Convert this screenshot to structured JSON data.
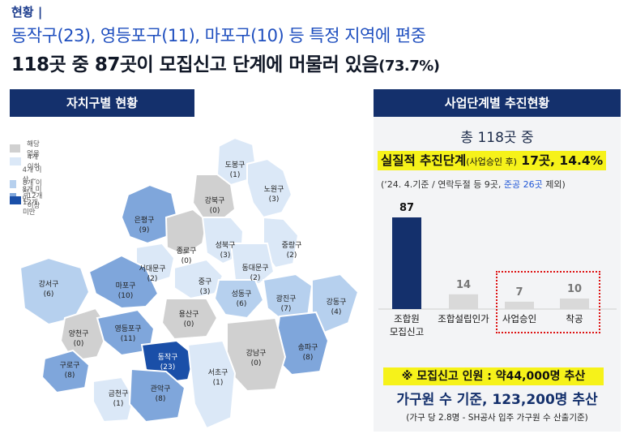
{
  "header": {
    "section": "현황",
    "line1": "동작구(23), 영등포구(11), 마포구(10) 등 특정 지역에 편중",
    "line2_main": "118곳 중 87곳이 모집신고 단계에 머물러 있음",
    "line2_pct": "(73.7%)"
  },
  "left_panel": {
    "title": "자치구별 현황",
    "legend": [
      {
        "label": "해당 없음",
        "color": "#d0d0d0"
      },
      {
        "label": "4개 이하",
        "color": "#dbe8f7"
      },
      {
        "label": "4개 이상 ~ 8개 미만",
        "color": "#b6d0ee"
      },
      {
        "label": "8개 이상 ~ 12개 미만",
        "color": "#7fa6db"
      },
      {
        "label": "12개 이상",
        "color": "#1a4fa8"
      }
    ],
    "districts": [
      {
        "name": "도봉구",
        "count": "(1)",
        "color": "#dbe8f7"
      },
      {
        "name": "노원구",
        "count": "(3)",
        "color": "#dbe8f7"
      },
      {
        "name": "강북구",
        "count": "(0)",
        "color": "#d0d0d0"
      },
      {
        "name": "은평구",
        "count": "(9)",
        "color": "#7fa6db"
      },
      {
        "name": "종로구",
        "count": "(0)",
        "color": "#d0d0d0"
      },
      {
        "name": "성북구",
        "count": "(3)",
        "color": "#dbe8f7"
      },
      {
        "name": "중랑구",
        "count": "(2)",
        "color": "#dbe8f7"
      },
      {
        "name": "서대문구",
        "count": "(2)",
        "color": "#dbe8f7"
      },
      {
        "name": "동대문구",
        "count": "(2)",
        "color": "#dbe8f7"
      },
      {
        "name": "마포구",
        "count": "(10)",
        "color": "#7fa6db"
      },
      {
        "name": "중구",
        "count": "(3)",
        "color": "#dbe8f7"
      },
      {
        "name": "성동구",
        "count": "(6)",
        "color": "#b6d0ee"
      },
      {
        "name": "광진구",
        "count": "(7)",
        "color": "#b6d0ee"
      },
      {
        "name": "강서구",
        "count": "(6)",
        "color": "#b6d0ee"
      },
      {
        "name": "용산구",
        "count": "(0)",
        "color": "#d0d0d0"
      },
      {
        "name": "강동구",
        "count": "(4)",
        "color": "#b6d0ee"
      },
      {
        "name": "양천구",
        "count": "(0)",
        "color": "#d0d0d0"
      },
      {
        "name": "영등포구",
        "count": "(11)",
        "color": "#7fa6db"
      },
      {
        "name": "동작구",
        "count": "(23)",
        "color": "#1a4fa8"
      },
      {
        "name": "송파구",
        "count": "(8)",
        "color": "#7fa6db"
      },
      {
        "name": "강남구",
        "count": "(0)",
        "color": "#d0d0d0"
      },
      {
        "name": "구로구",
        "count": "(8)",
        "color": "#7fa6db"
      },
      {
        "name": "서초구",
        "count": "(1)",
        "color": "#dbe8f7"
      },
      {
        "name": "금천구",
        "count": "(1)",
        "color": "#dbe8f7"
      },
      {
        "name": "관악구",
        "count": "(8)",
        "color": "#7fa6db"
      }
    ]
  },
  "right_panel": {
    "title": "사업단계별 추진현황",
    "total": "총 118곳 중",
    "highlight_a": "실질적 추진단계",
    "highlight_b": "(사업승인 후)",
    "highlight_c": " 17곳, 14.4%",
    "note_a": "(‘24. 4.기준 / 연락두절 등 9곳, ",
    "note_b": "준공 26곳",
    "note_c": " 제외)",
    "recruit": "※  모집신고 인원 : 약44,000명 추산",
    "household": "가구원 수 기준,  123,200명 추산",
    "basis": "(가구 당 2.8명 - SH공사 입주 가구원 수 산출기준)"
  },
  "chart_data": {
    "type": "bar",
    "categories": [
      "조합원\n모집신고",
      "조합설립인가",
      "사업승인",
      "착공"
    ],
    "values": [
      87,
      14,
      7,
      10
    ],
    "colors": [
      "#14306c",
      "#d9d9d9",
      "#d9d9d9",
      "#d9d9d9"
    ],
    "title": "",
    "xlabel": "",
    "ylabel": ""
  }
}
